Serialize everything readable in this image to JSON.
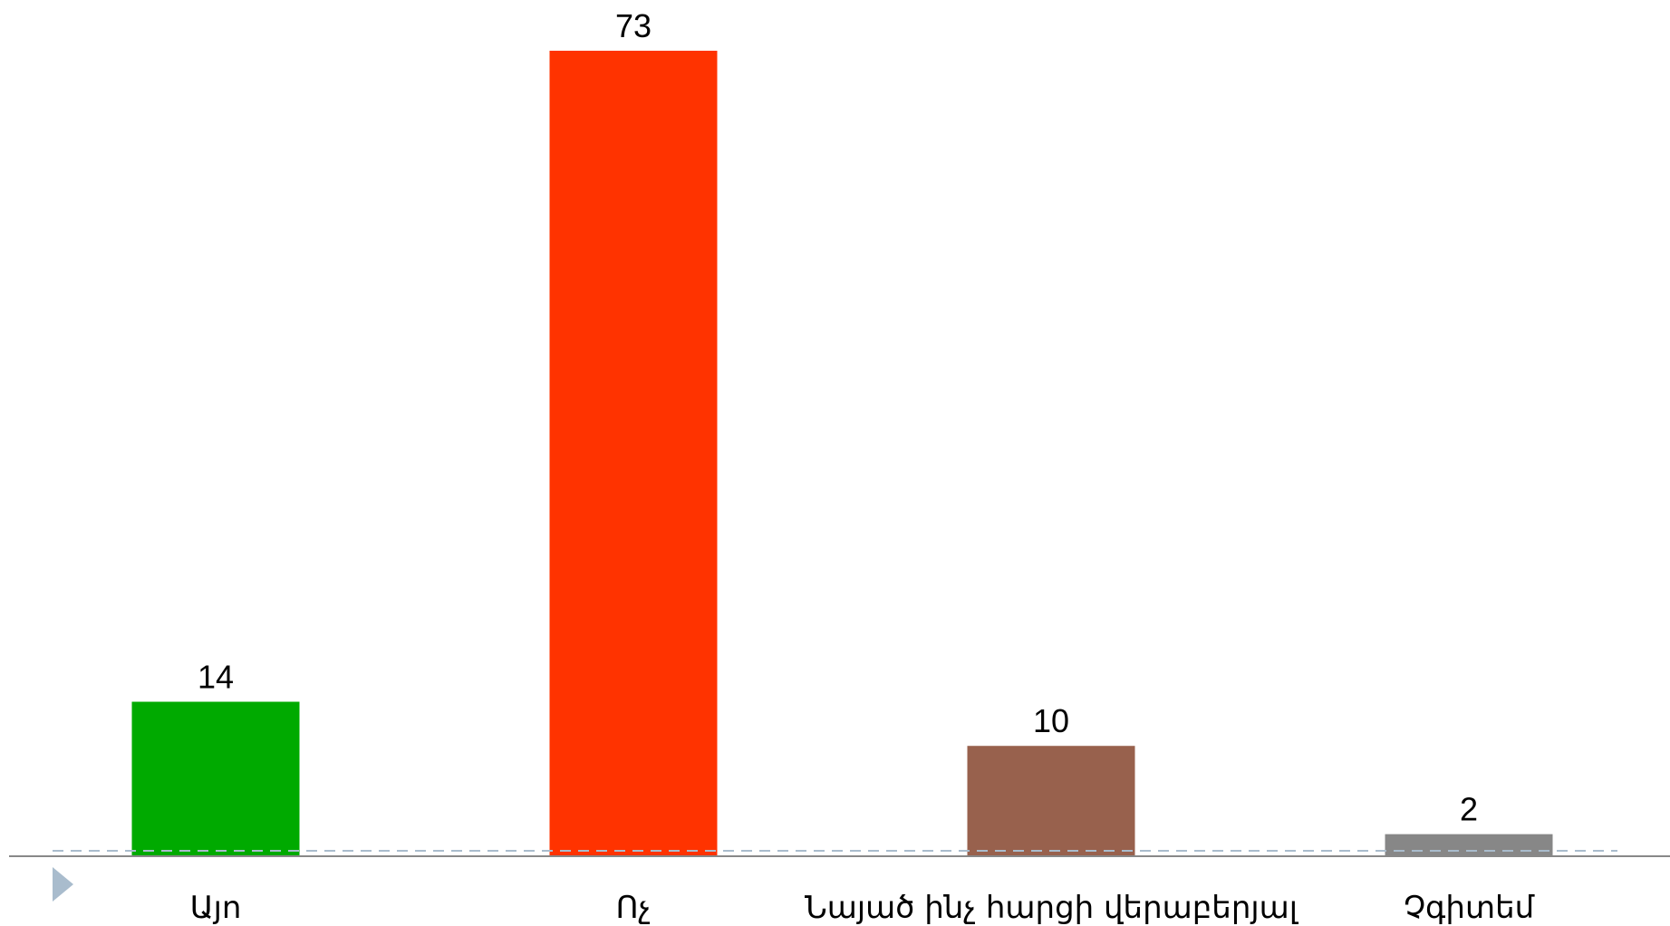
{
  "chart_data": {
    "type": "bar",
    "categories": [
      "Այո",
      "Ոչ",
      "Նայած ինչ հարցի վերաբերյալ",
      "Չգիտեմ"
    ],
    "values": [
      14,
      73,
      10,
      2
    ],
    "colors": [
      "#00aa00",
      "#ff3300",
      "#98614d",
      "#878787"
    ],
    "data_labels": [
      "14",
      "73",
      "10",
      "2"
    ],
    "title": "",
    "xlabel": "",
    "ylabel": "",
    "ylim": [
      0,
      73
    ],
    "grid": false,
    "legend": "none",
    "axis_color": "#888888",
    "baseline_dash_color": "#a9bccd",
    "marker_color": "#a9bccd"
  }
}
